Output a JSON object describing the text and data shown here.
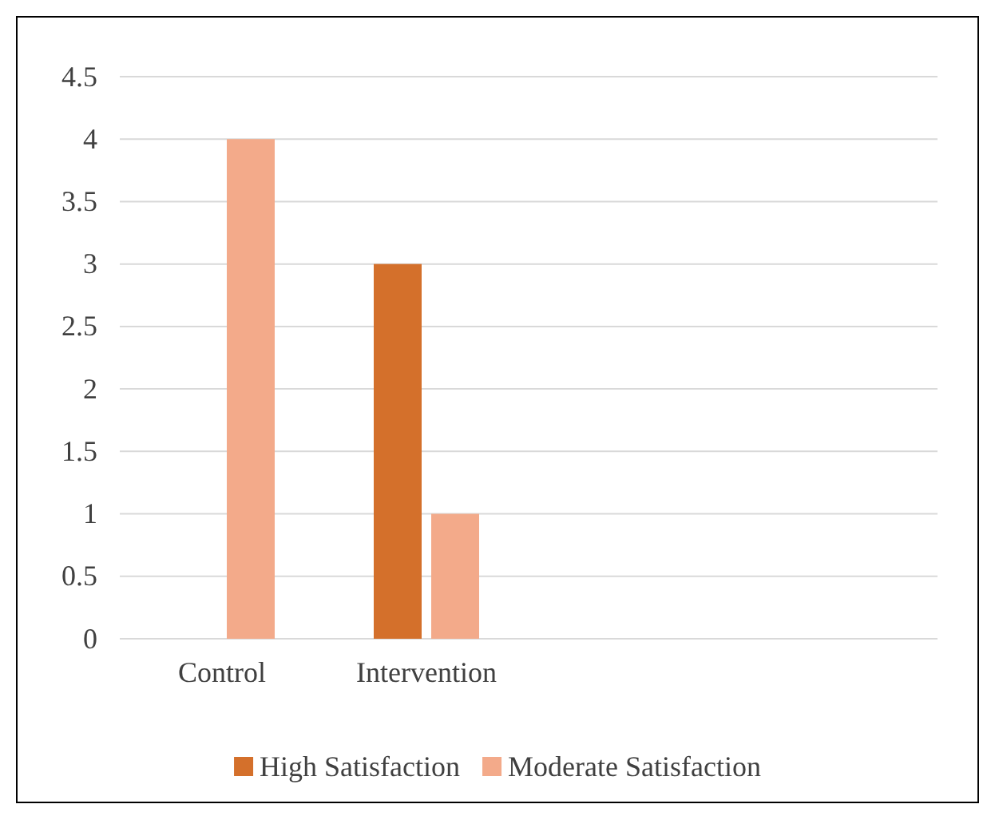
{
  "chart_data": {
    "type": "bar",
    "categories": [
      "Control",
      "Intervention",
      null,
      null
    ],
    "series": [
      {
        "name": "High Satisfaction",
        "color": "#d4702b",
        "values": [
          0,
          3,
          null,
          null
        ]
      },
      {
        "name": "Moderate Satisfaction",
        "color": "#f3aa8a",
        "values": [
          4,
          1,
          null,
          null
        ]
      }
    ],
    "ylim": [
      0,
      4.5
    ],
    "yticks": [
      0,
      0.5,
      1,
      1.5,
      2,
      2.5,
      3,
      3.5,
      4,
      4.5
    ],
    "grid": "y",
    "legend": "bottom"
  }
}
